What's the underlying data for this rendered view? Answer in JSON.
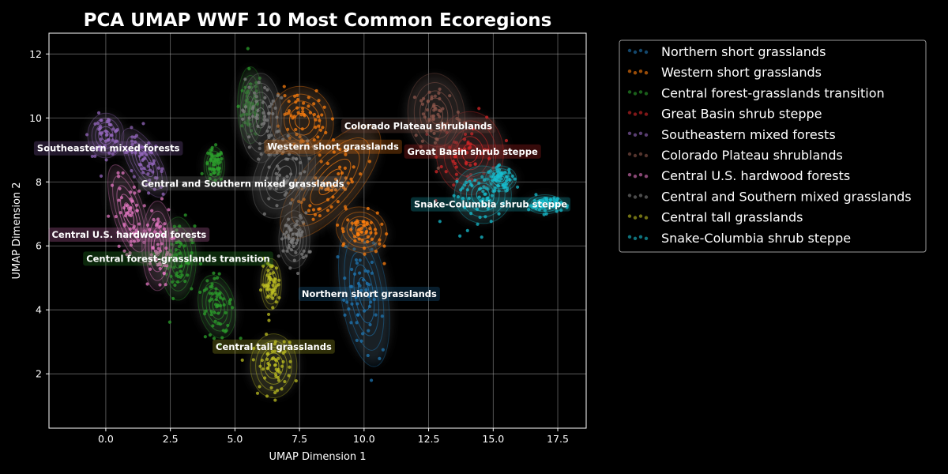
{
  "chart_data": {
    "type": "scatter",
    "title": "PCA UMAP WWF 10 Most Common Ecoregions",
    "xlabel": "UMAP Dimension 1",
    "ylabel": "UMAP Dimension 2",
    "xlim": [
      -2.2,
      18.6
    ],
    "ylim": [
      0.3,
      12.65
    ],
    "xticks": [
      "0.0",
      "2.5",
      "5.0",
      "7.5",
      "10.0",
      "12.5",
      "15.0",
      "17.5"
    ],
    "yticks": [
      "2",
      "4",
      "6",
      "8",
      "10",
      "12"
    ],
    "grid": true,
    "legend_position": "outside-right",
    "series": [
      {
        "name": "Northern short grasslands",
        "color": "#1f77b4",
        "label": {
          "text": "Northern short grasslands",
          "x": 10.2,
          "y": 4.5
        },
        "clusters": [
          {
            "x": 10.0,
            "y": 4.5,
            "sx": 0.45,
            "sy": 1.15,
            "r": 0.15
          }
        ]
      },
      {
        "name": "Western short grasslands",
        "color": "#ff7f0e",
        "label": {
          "text": "Western short grasslands",
          "x": 8.8,
          "y": 9.1
        },
        "clusters": [
          {
            "x": 7.6,
            "y": 9.9,
            "sx": 0.6,
            "sy": 0.55,
            "r": 0.3
          },
          {
            "x": 8.7,
            "y": 8.0,
            "sx": 0.55,
            "sy": 1.1,
            "r": -0.7
          },
          {
            "x": 9.9,
            "y": 6.5,
            "sx": 0.5,
            "sy": 0.35,
            "r": -0.4
          }
        ]
      },
      {
        "name": "Central forest-grasslands transition",
        "color": "#2ca02c",
        "label": {
          "text": "Central forest-grasslands transition",
          "x": 2.8,
          "y": 5.6
        },
        "clusters": [
          {
            "x": 2.8,
            "y": 5.6,
            "sx": 0.35,
            "sy": 0.65,
            "r": 0
          },
          {
            "x": 4.3,
            "y": 4.1,
            "sx": 0.35,
            "sy": 0.5,
            "r": 0.2
          },
          {
            "x": 5.6,
            "y": 10.4,
            "sx": 0.25,
            "sy": 0.6,
            "r": 0
          },
          {
            "x": 4.2,
            "y": 8.5,
            "sx": 0.2,
            "sy": 0.3,
            "r": 0
          }
        ]
      },
      {
        "name": "Great Basin shrub steppe",
        "color": "#d62728",
        "label": {
          "text": "Great Basin shrub steppe",
          "x": 14.2,
          "y": 8.95
        },
        "clusters": [
          {
            "x": 14.1,
            "y": 8.9,
            "sx": 0.65,
            "sy": 0.65,
            "r": 0
          }
        ]
      },
      {
        "name": "Southeastern mixed forests",
        "color": "#9467bd",
        "label": {
          "text": "Southeastern mixed forests",
          "x": 0.1,
          "y": 9.05
        },
        "clusters": [
          {
            "x": 0.0,
            "y": 9.45,
            "sx": 0.35,
            "sy": 0.35,
            "r": 0
          },
          {
            "x": 1.5,
            "y": 8.6,
            "sx": 0.3,
            "sy": 0.6,
            "r": 0.5
          }
        ]
      },
      {
        "name": "Colorado Plateau shrublands",
        "color": "#8c564b",
        "label": {
          "text": "Colorado Plateau shrublands",
          "x": 12.1,
          "y": 9.75
        },
        "clusters": [
          {
            "x": 12.8,
            "y": 10.1,
            "sx": 0.55,
            "sy": 0.65,
            "r": 0.1
          }
        ]
      },
      {
        "name": "Central U.S. hardwood forests",
        "color": "#e377c2",
        "label": {
          "text": "Central U.S. hardwood forests",
          "x": 0.9,
          "y": 6.35
        },
        "clusters": [
          {
            "x": 0.9,
            "y": 7.0,
            "sx": 0.3,
            "sy": 0.8,
            "r": 0.3
          },
          {
            "x": 2.0,
            "y": 6.0,
            "sx": 0.3,
            "sy": 0.7,
            "r": 0
          }
        ]
      },
      {
        "name": "Central and Southern mixed grasslands",
        "color": "#7f7f7f",
        "label": {
          "text": "Central and Southern mixed grasslands",
          "x": 5.3,
          "y": 7.95
        },
        "clusters": [
          {
            "x": 6.0,
            "y": 10.0,
            "sx": 0.4,
            "sy": 0.7,
            "r": 0
          },
          {
            "x": 6.9,
            "y": 8.2,
            "sx": 0.55,
            "sy": 0.7,
            "r": -0.4
          },
          {
            "x": 7.3,
            "y": 6.2,
            "sx": 0.3,
            "sy": 0.45,
            "r": 0
          }
        ]
      },
      {
        "name": "Central tall grasslands",
        "color": "#bcbd22",
        "label": {
          "text": "Central tall grasslands",
          "x": 6.5,
          "y": 2.85
        },
        "clusters": [
          {
            "x": 6.5,
            "y": 2.25,
            "sx": 0.45,
            "sy": 0.5,
            "r": 0
          },
          {
            "x": 6.4,
            "y": 4.8,
            "sx": 0.2,
            "sy": 0.4,
            "r": 0
          }
        ]
      },
      {
        "name": "Snake-Columbia shrub steppe",
        "color": "#17becf",
        "label": {
          "text": "Snake-Columbia shrub steppe",
          "x": 14.9,
          "y": 7.3
        },
        "clusters": [
          {
            "x": 14.6,
            "y": 7.6,
            "sx": 0.55,
            "sy": 0.45,
            "r": 0.5
          },
          {
            "x": 15.3,
            "y": 8.1,
            "sx": 0.3,
            "sy": 0.2,
            "r": 0
          },
          {
            "x": 17.0,
            "y": 7.3,
            "sx": 0.35,
            "sy": 0.15,
            "r": 0
          }
        ]
      }
    ]
  }
}
